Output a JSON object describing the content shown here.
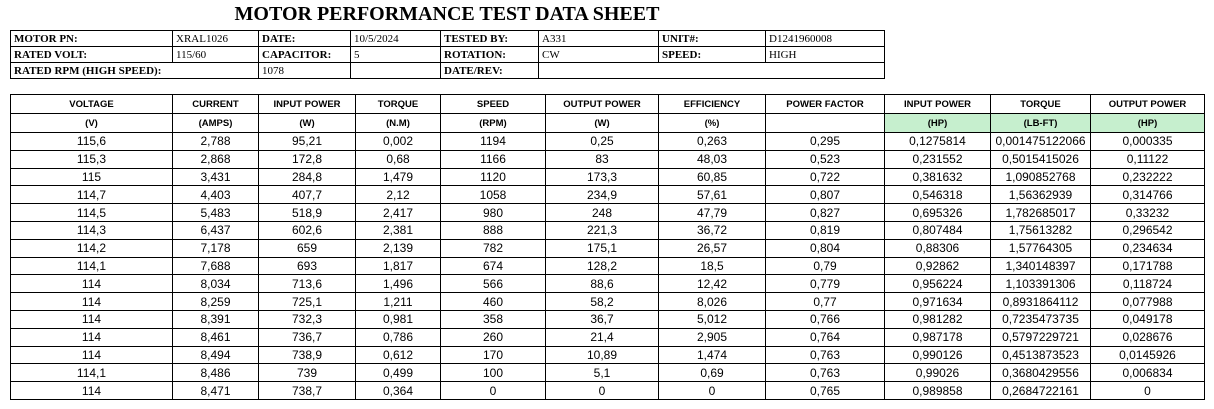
{
  "header": {
    "title": "MOTOR PERFORMANCE TEST DATA SHEET"
  },
  "info": {
    "motor_pn": {
      "label": "MOTOR PN:",
      "value": "XRAL1026"
    },
    "date": {
      "label": "DATE:",
      "value": "10/5/2024"
    },
    "tested_by": {
      "label": "TESTED BY:",
      "value": "A331"
    },
    "unit": {
      "label": "UNIT#:",
      "value": "D1241960008"
    },
    "rated_volt": {
      "label": "RATED VOLT:",
      "value": "115/60"
    },
    "capacitor": {
      "label": "CAPACITOR:",
      "value": "5"
    },
    "rotation": {
      "label": "ROTATION:",
      "value": "CW"
    },
    "speed": {
      "label": "SPEED:",
      "value": "HIGH"
    },
    "rated_rpm": {
      "label": "RATED RPM (HIGH SPEED):",
      "value": "1078"
    },
    "date_rev": {
      "label": "DATE/REV:"
    }
  },
  "table": {
    "columns": [
      {
        "name": "VOLTAGE",
        "unit": "(V)"
      },
      {
        "name": "CURRENT",
        "unit": "(AMPS)"
      },
      {
        "name": "INPUT POWER",
        "unit": "(W)"
      },
      {
        "name": "TORQUE",
        "unit": "(N.M)"
      },
      {
        "name": "SPEED",
        "unit": "(RPM)"
      },
      {
        "name": "OUTPUT POWER",
        "unit": "(W)"
      },
      {
        "name": "EFFICIENCY",
        "unit": "(%)"
      },
      {
        "name": "POWER FACTOR"
      },
      {
        "name": "INPUT POWER",
        "unit": "(HP)",
        "highlight": true
      },
      {
        "name": "TORQUE",
        "unit": "(LB-FT)",
        "highlight": true
      },
      {
        "name": "OUTPUT POWER",
        "unit": "(HP)",
        "highlight": true
      }
    ],
    "rows": [
      [
        "115,6",
        "2,788",
        "95,21",
        "0,002",
        "1194",
        "0,25",
        "0,263",
        "0,295",
        "0,1275814",
        "0,001475122066",
        "0,000335"
      ],
      [
        "115,3",
        "2,868",
        "172,8",
        "0,68",
        "1166",
        "83",
        "48,03",
        "0,523",
        "0,231552",
        "0,5015415026",
        "0,11122"
      ],
      [
        "115",
        "3,431",
        "284,8",
        "1,479",
        "1120",
        "173,3",
        "60,85",
        "0,722",
        "0,381632",
        "1,090852768",
        "0,232222"
      ],
      [
        "114,7",
        "4,403",
        "407,7",
        "2,12",
        "1058",
        "234,9",
        "57,61",
        "0,807",
        "0,546318",
        "1,56362939",
        "0,314766"
      ],
      [
        "114,5",
        "5,483",
        "518,9",
        "2,417",
        "980",
        "248",
        "47,79",
        "0,827",
        "0,695326",
        "1,782685017",
        "0,33232"
      ],
      [
        "114,3",
        "6,437",
        "602,6",
        "2,381",
        "888",
        "221,3",
        "36,72",
        "0,819",
        "0,807484",
        "1,75613282",
        "0,296542"
      ],
      [
        "114,2",
        "7,178",
        "659",
        "2,139",
        "782",
        "175,1",
        "26,57",
        "0,804",
        "0,88306",
        "1,57764305",
        "0,234634"
      ],
      [
        "114,1",
        "7,688",
        "693",
        "1,817",
        "674",
        "128,2",
        "18,5",
        "0,79",
        "0,92862",
        "1,340148397",
        "0,171788"
      ],
      [
        "114",
        "8,034",
        "713,6",
        "1,496",
        "566",
        "88,6",
        "12,42",
        "0,779",
        "0,956224",
        "1,103391306",
        "0,118724"
      ],
      [
        "114",
        "8,259",
        "725,1",
        "1,211",
        "460",
        "58,2",
        "8,026",
        "0,77",
        "0,971634",
        "0,8931864112",
        "0,077988"
      ],
      [
        "114",
        "8,391",
        "732,3",
        "0,981",
        "358",
        "36,7",
        "5,012",
        "0,766",
        "0,981282",
        "0,7235473735",
        "0,049178"
      ],
      [
        "114",
        "8,461",
        "736,7",
        "0,786",
        "260",
        "21,4",
        "2,905",
        "0,764",
        "0,987178",
        "0,5797229721",
        "0,028676"
      ],
      [
        "114",
        "8,494",
        "738,9",
        "0,612",
        "170",
        "10,89",
        "1,474",
        "0,763",
        "0,990126",
        "0,4513873523",
        "0,0145926"
      ],
      [
        "114,1",
        "8,486",
        "739",
        "0,499",
        "100",
        "5,1",
        "0,69",
        "0,763",
        "0,99026",
        "0,3680429556",
        "0,006834"
      ],
      [
        "114",
        "8,471",
        "738,7",
        "0,364",
        "0",
        "0",
        "0",
        "0,765",
        "0,989858",
        "0,2684722161",
        "0"
      ]
    ]
  }
}
